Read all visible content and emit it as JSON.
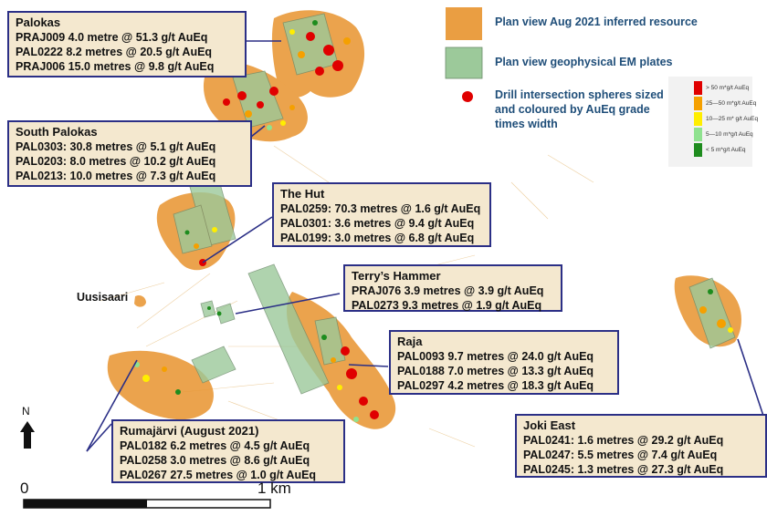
{
  "callouts": [
    {
      "id": "palokas",
      "title": "Palokas",
      "lines": [
        "PRAJ009 4.0 metre @ 51.3 g/t AuEq",
        "PAL0222 8.2 metres @ 20.5 g/t AuEq",
        "PRAJ006 15.0 metres @ 9.8 g/t AuEq"
      ]
    },
    {
      "id": "south-palokas",
      "title": "South Palokas",
      "lines": [
        "PAL0303: 30.8 metres @ 5.1 g/t AuEq",
        "PAL0203: 8.0 metres @ 10.2 g/t AuEq",
        "PAL0213: 10.0 metres @ 7.3 g/t AuEq"
      ]
    },
    {
      "id": "the-hut",
      "title": "The Hut",
      "lines": [
        "PAL0259: 70.3 metres @ 1.6 g/t AuEq",
        "PAL0301: 3.6 metres @ 9.4 g/t AuEq",
        "PAL0199: 3.0 metres @ 6.8 g/t AuEq"
      ]
    },
    {
      "id": "terrys-hammer",
      "title": "Terry’s Hammer",
      "lines": [
        "PRAJ076 3.9 metres @ 3.9 g/t AuEq",
        "PAL0273 9.3 metres @ 1.9 g/t AuEq"
      ]
    },
    {
      "id": "raja",
      "title": "Raja",
      "lines": [
        "PAL0093 9.7 metres @ 24.0 g/t AuEq",
        "PAL0188 7.0 metres @  13.3 g/t AuEq",
        "PAL0297 4.2 metres @  18.3 g/t AuEq"
      ]
    },
    {
      "id": "rumajarvi",
      "title": "Rumajärvi (August 2021)",
      "lines": [
        "PAL0182 6.2 metres @ 4.5 g/t AuEq",
        "PAL0258 3.0 metres @ 8.6 g/t AuEq",
        "PAL0267 27.5 metres @ 1.0 g/t AuEq"
      ]
    },
    {
      "id": "joki-east",
      "title": "Joki East",
      "lines": [
        "PAL0241: 1.6 metres @ 29.2 g/t AuEq",
        "PAL0247: 5.5 metres @ 7.4 g/t AuEq",
        "PAL0245: 1.3 metres @ 27.3 g/t AuEq"
      ]
    }
  ],
  "legend": {
    "resource": "Plan view Aug 2021 inferred resource",
    "plates": "Plan view geophysical EM plates",
    "spheres_line1": "Drill intersection spheres sized",
    "spheres_line2": "and coloured by AuEq grade",
    "spheres_line3": "times width"
  },
  "grade_scale": [
    {
      "label": "> 50  m*g/t  AuEq",
      "color": "#e00000"
    },
    {
      "label": "25—50 m*g/t AuEq",
      "color": "#f5a000"
    },
    {
      "label": "10—25 m* g/t AuEq",
      "color": "#ffee00"
    },
    {
      "label": "5—10 m*g/t AuEq",
      "color": "#8fe28f"
    },
    {
      "label": "< 5 m*g/t AuEq",
      "color": "#1e8c1e"
    }
  ],
  "place_name": "Uusisaari",
  "north_label": "N",
  "scale_bar": {
    "start": "0",
    "end": "1 km"
  },
  "colors": {
    "resource": "#e8932e",
    "plates": "#9cc99a",
    "callout_border": "#2b2f86",
    "callout_fill": "#f4e8cf",
    "legend_text": "#1f4e79"
  }
}
